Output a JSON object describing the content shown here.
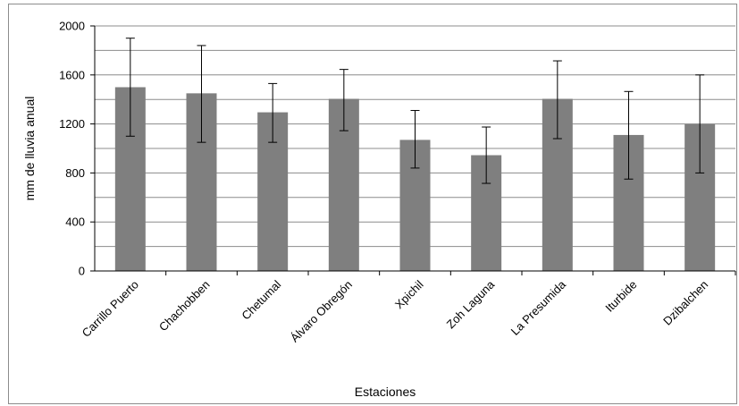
{
  "chart_data": {
    "type": "bar",
    "categories": [
      "Carrillo Puerto",
      "Chachobben",
      "Chetumal",
      "Álvaro Obregón",
      "Xpichil",
      "Zoh Laguna",
      "La Presumida",
      "Iturbide",
      "Dzibalchen"
    ],
    "values": [
      1500,
      1450,
      1295,
      1405,
      1070,
      945,
      1405,
      1110,
      1200
    ],
    "error_low": [
      1100,
      1050,
      1050,
      1145,
      840,
      715,
      1080,
      750,
      800
    ],
    "error_high": [
      1900,
      1840,
      1530,
      1645,
      1310,
      1175,
      1715,
      1465,
      1600
    ],
    "xlabel": "Estaciones",
    "ylabel": "mm de lluvia anual",
    "ylim": [
      0,
      2000
    ],
    "yticks": [
      "0",
      "400",
      "800",
      "1200",
      "1600",
      "2000"
    ],
    "grid": true,
    "colors": {
      "bar": "#7f7f7f",
      "grid": "#8c8c8c",
      "error": "#000000"
    }
  }
}
